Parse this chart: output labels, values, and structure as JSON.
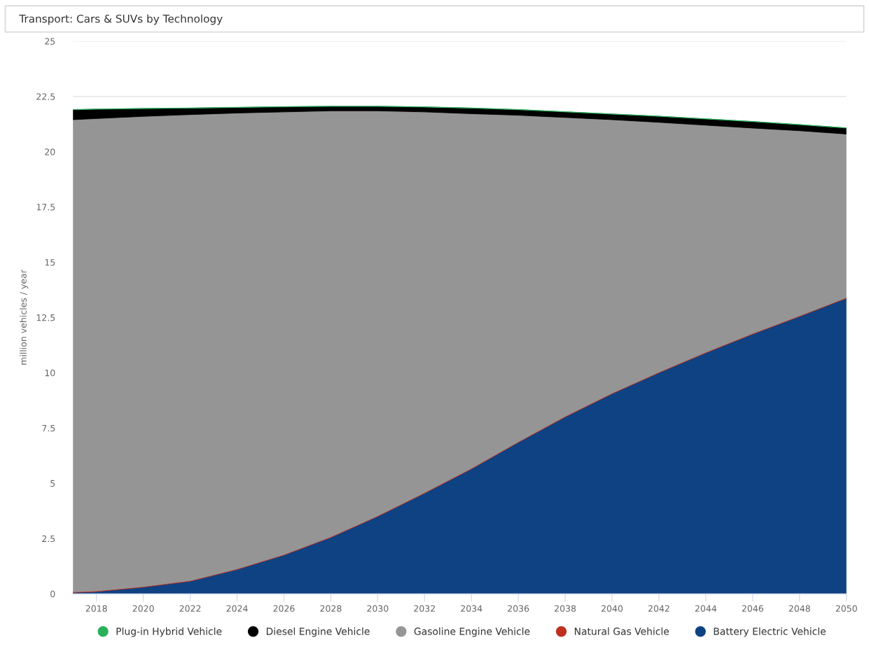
{
  "chart_data": {
    "type": "area",
    "stacked": true,
    "title": "Transport: Cars & SUVs by Technology",
    "ylabel": "million vehicles / year",
    "x": [
      2017,
      2018,
      2020,
      2022,
      2024,
      2026,
      2028,
      2030,
      2032,
      2034,
      2036,
      2038,
      2040,
      2042,
      2044,
      2046,
      2048,
      2050
    ],
    "series": [
      {
        "name": "Battery Electric Vehicle",
        "color": "#0f4282",
        "values": [
          0.06,
          0.1,
          0.3,
          0.57,
          1.1,
          1.75,
          2.55,
          3.5,
          4.55,
          5.65,
          6.85,
          8.0,
          9.05,
          10.0,
          10.9,
          11.75,
          12.55,
          13.37
        ]
      },
      {
        "name": "Natural Gas Vehicle",
        "color": "#c0301f",
        "values": [
          0.03,
          0.03,
          0.03,
          0.03,
          0.03,
          0.03,
          0.03,
          0.03,
          0.03,
          0.03,
          0.03,
          0.03,
          0.03,
          0.03,
          0.03,
          0.03,
          0.03,
          0.03
        ]
      },
      {
        "name": "Gasoline Engine Vehicle",
        "color": "#959595",
        "values": [
          21.36,
          21.37,
          21.27,
          21.08,
          20.62,
          20.02,
          19.27,
          18.32,
          17.22,
          16.04,
          14.77,
          13.52,
          12.37,
          11.3,
          10.27,
          9.29,
          8.37,
          7.4
        ]
      },
      {
        "name": "Diesel Engine Vehicle",
        "color": "#000000",
        "values": [
          0.45,
          0.42,
          0.35,
          0.29,
          0.25,
          0.23,
          0.2,
          0.2,
          0.22,
          0.25,
          0.25,
          0.25,
          0.25,
          0.27,
          0.28,
          0.29,
          0.27,
          0.27
        ]
      },
      {
        "name": "Plug-in Hybrid Vehicle",
        "color": "#2ab05a",
        "values": [
          0.01,
          0.01,
          0.01,
          0.01,
          0.01,
          0.01,
          0.01,
          0.01,
          0.01,
          0.01,
          0.01,
          0.01,
          0.01,
          0.01,
          0.01,
          0.01,
          0.01,
          0.01
        ]
      }
    ],
    "xlim": [
      2017,
      2050
    ],
    "xticks": [
      2018,
      2020,
      2022,
      2024,
      2026,
      2028,
      2030,
      2032,
      2034,
      2036,
      2038,
      2040,
      2042,
      2044,
      2046,
      2048,
      2050
    ],
    "ylim": [
      0,
      25
    ],
    "yticks": [
      0,
      2.5,
      5,
      7.5,
      10,
      12.5,
      15,
      17.5,
      20,
      22.5,
      25
    ],
    "grid": "y",
    "legend": "bottom"
  }
}
